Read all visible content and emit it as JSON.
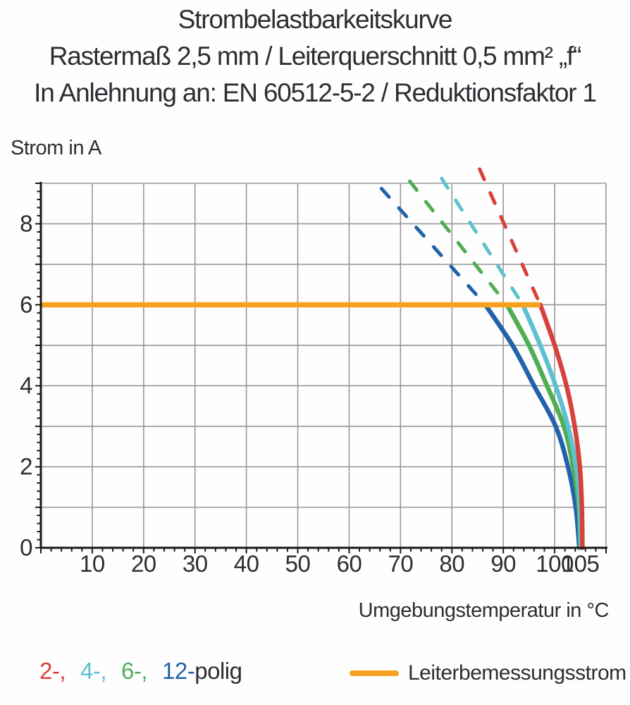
{
  "title": {
    "line1": "Strombelastbarkeitskurve",
    "line2": "Rastermaß 2,5 mm / Leiterquerschnitt 0,5 mm² „f“",
    "line3": "In Anlehnung an: EN 60512-5-2 / Reduktionsfaktor 1"
  },
  "chart_data": {
    "type": "line",
    "title": "Strombelastbarkeitskurve",
    "ylabel": "Strom in A",
    "xlabel": "Umgebungstemperatur in °C",
    "xlim": [
      0,
      110
    ],
    "ylim": [
      0,
      9
    ],
    "grid": true,
    "x_tick_labels": [
      10,
      20,
      30,
      40,
      50,
      60,
      70,
      80,
      90,
      100,
      105
    ],
    "y_tick_labels": [
      0,
      2,
      4,
      6,
      8
    ],
    "x_grid_step": 10,
    "y_grid_step": 1,
    "x_minor_tick_step": 2,
    "y_minor_tick_step": 0.2,
    "colors": {
      "grid": "#989898",
      "axis": "#1a1a1a",
      "text": "#2d2d33"
    },
    "series": [
      {
        "name": "12-polig",
        "color": "#2262aa",
        "dashed_segment": [
          [
            66.3,
            8.87
          ],
          [
            86.5,
            6
          ]
        ],
        "solid_segment": [
          [
            86.5,
            6
          ],
          [
            91.8,
            5
          ],
          [
            96.0,
            4
          ],
          [
            100.2,
            3
          ],
          [
            102.6,
            2
          ],
          [
            104.1,
            1
          ],
          [
            104.8,
            0
          ]
        ]
      },
      {
        "name": "6-polig",
        "color": "#4fae53",
        "dashed_segment": [
          [
            71.8,
            9.05
          ],
          [
            90.7,
            6
          ]
        ],
        "solid_segment": [
          [
            90.7,
            6
          ],
          [
            95.0,
            5
          ],
          [
            98.5,
            4
          ],
          [
            101.8,
            3
          ],
          [
            103.6,
            2
          ],
          [
            104.7,
            1
          ],
          [
            105.0,
            0
          ]
        ]
      },
      {
        "name": "4-polig",
        "color": "#5ec1cf",
        "dashed_segment": [
          [
            78.0,
            9.12
          ],
          [
            93.8,
            6
          ]
        ],
        "solid_segment": [
          [
            93.8,
            6
          ],
          [
            97.2,
            5
          ],
          [
            100.2,
            4
          ],
          [
            102.6,
            3
          ],
          [
            104.2,
            2
          ],
          [
            104.9,
            1
          ],
          [
            105.1,
            0
          ]
        ]
      },
      {
        "name": "2-polig",
        "color": "#d6423a",
        "dashed_segment": [
          [
            85.4,
            9.35
          ],
          [
            97.2,
            6
          ]
        ],
        "solid_segment": [
          [
            97.2,
            6
          ],
          [
            100.0,
            5
          ],
          [
            102.3,
            4
          ],
          [
            103.9,
            3
          ],
          [
            104.9,
            2
          ],
          [
            105.3,
            1
          ],
          [
            105.4,
            0
          ]
        ]
      }
    ],
    "reference_line": {
      "label": "Leiterbemessungsstrom",
      "color": "#f6a120",
      "value_a": 6,
      "x_start": 0,
      "x_end": 97.2
    }
  },
  "legend": {
    "items": [
      {
        "name": "2-polig",
        "label": "2-,",
        "color": "#d6423a"
      },
      {
        "name": "4-polig",
        "label": "4-,",
        "color": "#5ec1cf"
      },
      {
        "name": "6-polig",
        "label": "6-,",
        "color": "#4fae53"
      },
      {
        "name": "12-polig",
        "label": "12-",
        "color": "#2262aa"
      }
    ],
    "suffix": "polig"
  }
}
